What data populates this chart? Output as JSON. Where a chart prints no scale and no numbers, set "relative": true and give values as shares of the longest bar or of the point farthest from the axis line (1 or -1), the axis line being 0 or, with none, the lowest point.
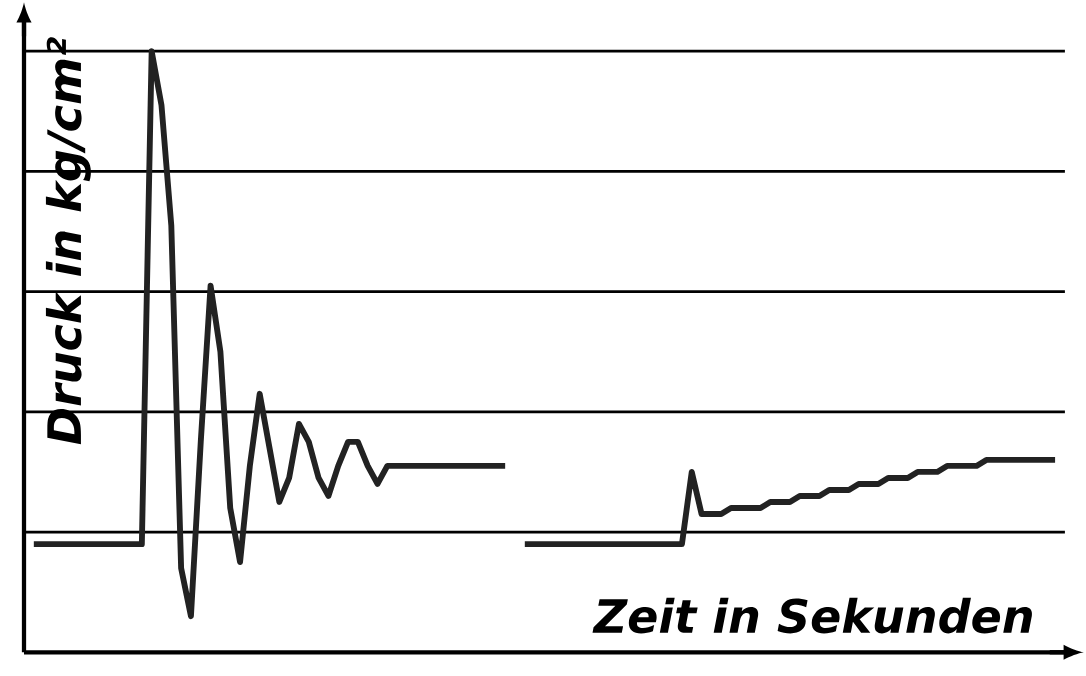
{
  "chart_data": {
    "type": "line",
    "relative": true,
    "xlabel": "Zeit in Sekunden",
    "ylabel": "Druck in kg/cm²",
    "grid": "y",
    "marker": "none",
    "line_style": "solid",
    "tick_labels": false,
    "categories": [
      null,
      null,
      null,
      null,
      null,
      null,
      null,
      null,
      null,
      null,
      null,
      null,
      null,
      null,
      null,
      null,
      null,
      null,
      null,
      null,
      null,
      null,
      null,
      null,
      null,
      null,
      null,
      null,
      null,
      null,
      null,
      null,
      null,
      null,
      null,
      null,
      null,
      null,
      null,
      null,
      null,
      null,
      null,
      null,
      null,
      null,
      null,
      null,
      null,
      null,
      null,
      null,
      null,
      null,
      null,
      null,
      null,
      null,
      null,
      null,
      null,
      null,
      null,
      null,
      null,
      null,
      null,
      null,
      null,
      null,
      null,
      null,
      null,
      null,
      null,
      null,
      null,
      null,
      null,
      null,
      null,
      null,
      null,
      null,
      null,
      null,
      null,
      null,
      null,
      null,
      null,
      null,
      null,
      null,
      null,
      null,
      null,
      null,
      null,
      null,
      null,
      null,
      null,
      null,
      null
    ],
    "series": [
      {
        "color": "#222222",
        "values": [
          0.18,
          0.18,
          0.18,
          0.18,
          0.18,
          0.18,
          0.18,
          0.18,
          0.18,
          0.18,
          0.18,
          0.18,
          1.0,
          0.91,
          0.71,
          0.14,
          0.06,
          0.35,
          0.61,
          0.5,
          0.24,
          0.15,
          0.31,
          0.43,
          0.34,
          0.25,
          0.29,
          0.38,
          0.35,
          0.29,
          0.26,
          0.31,
          0.35,
          0.35,
          0.31,
          0.28,
          0.31,
          0.31,
          0.31,
          0.31,
          0.31,
          0.31,
          0.31,
          0.31,
          0.31,
          0.31,
          0.31,
          0.31,
          0.31,
          null,
          null,
          null,
          null,
          null,
          null,
          null,
          null,
          null,
          null,
          null,
          null,
          null,
          null,
          null,
          null,
          null,
          null,
          null,
          null,
          null,
          null,
          null,
          null,
          null,
          null,
          null,
          null,
          null,
          null,
          null,
          null,
          null,
          null,
          null,
          null,
          null,
          null,
          null,
          null,
          null,
          null,
          null,
          null,
          null,
          null,
          null,
          null,
          null,
          null,
          null,
          null,
          null,
          null,
          null,
          null
        ]
      },
      {
        "color": "#222222",
        "values": [
          null,
          null,
          null,
          null,
          null,
          null,
          null,
          null,
          null,
          null,
          null,
          null,
          null,
          null,
          null,
          null,
          null,
          null,
          null,
          null,
          null,
          null,
          null,
          null,
          null,
          null,
          null,
          null,
          null,
          null,
          null,
          null,
          null,
          null,
          null,
          null,
          null,
          null,
          null,
          null,
          null,
          null,
          null,
          null,
          null,
          null,
          null,
          null,
          null,
          null,
          0.18,
          0.18,
          0.18,
          0.18,
          0.18,
          0.18,
          0.18,
          0.18,
          0.18,
          0.18,
          0.18,
          0.18,
          0.18,
          0.18,
          0.18,
          0.18,
          0.18,
          0.3,
          0.23,
          0.23,
          0.23,
          0.24,
          0.24,
          0.24,
          0.24,
          0.25,
          0.25,
          0.25,
          0.26,
          0.26,
          0.26,
          0.27,
          0.27,
          0.27,
          0.28,
          0.28,
          0.28,
          0.29,
          0.29,
          0.29,
          0.3,
          0.3,
          0.3,
          0.31,
          0.31,
          0.31,
          0.31,
          0.32,
          0.32,
          0.32,
          0.32,
          0.32,
          0.32,
          0.32,
          0.32
        ]
      }
    ]
  }
}
